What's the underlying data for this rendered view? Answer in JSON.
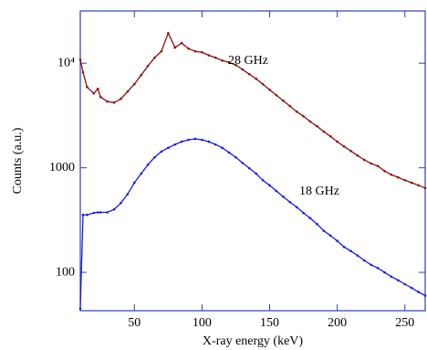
{
  "chart_data": {
    "type": "line",
    "xlabel": "X-ray energy (keV)",
    "ylabel": "Counts (a.u.)",
    "y_scale": "log",
    "xlim": [
      10,
      265
    ],
    "ylim": [
      43,
      31600
    ],
    "xticks": [
      50,
      100,
      150,
      200,
      250
    ],
    "yticks": [
      100,
      1000,
      {
        "value": 10000,
        "label": "10⁴"
      }
    ],
    "x": [
      10,
      12,
      15,
      20,
      23,
      25,
      30,
      35,
      40,
      45,
      50,
      55,
      60,
      65,
      70,
      75,
      80,
      85,
      90,
      95,
      100,
      105,
      110,
      115,
      120,
      125,
      130,
      135,
      140,
      145,
      150,
      155,
      160,
      165,
      170,
      175,
      180,
      185,
      190,
      195,
      200,
      205,
      210,
      215,
      220,
      225,
      230,
      235,
      240,
      245,
      250,
      255,
      260,
      265
    ],
    "series": [
      {
        "name": "28  GHz",
        "color": "#8b1010",
        "values": [
          10800,
          8200,
          5930,
          5150,
          5700,
          4750,
          4300,
          4200,
          4560,
          5370,
          6300,
          7700,
          9400,
          11300,
          13000,
          19400,
          14100,
          15600,
          13800,
          13000,
          12700,
          11900,
          11300,
          10600,
          10200,
          9600,
          8700,
          7850,
          7100,
          6300,
          5580,
          4950,
          4380,
          3890,
          3440,
          3110,
          2770,
          2500,
          2220,
          2000,
          1780,
          1600,
          1450,
          1310,
          1190,
          1100,
          1040,
          930,
          860,
          810,
          760,
          720,
          680,
          640
        ]
      },
      {
        "name": "18 GHz",
        "color": "#1a1ae6",
        "values": [
          45,
          355,
          355,
          370,
          375,
          375,
          375,
          400,
          460,
          560,
          720,
          880,
          1070,
          1260,
          1430,
          1550,
          1670,
          1780,
          1850,
          1890,
          1850,
          1780,
          1670,
          1550,
          1400,
          1260,
          1110,
          990,
          880,
          760,
          680,
          600,
          530,
          470,
          420,
          370,
          330,
          290,
          250,
          225,
          200,
          175,
          160,
          145,
          130,
          118,
          110,
          100,
          91,
          84,
          77,
          71,
          65,
          60
        ]
      }
    ]
  }
}
